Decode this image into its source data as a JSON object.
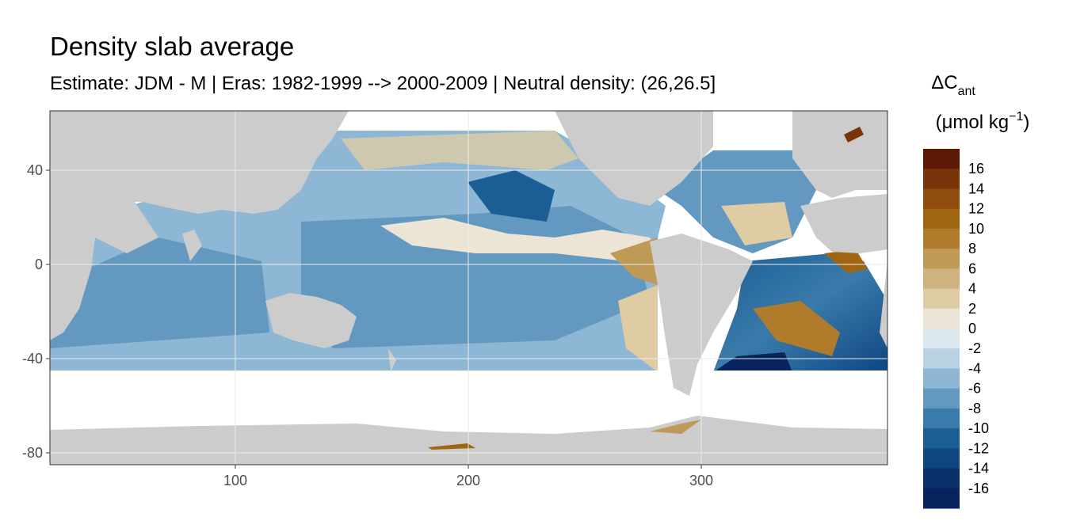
{
  "title": "Density slab average",
  "subtitle": "Estimate: JDM - M | Eras: 1982-1999 --> 2000-2009 | Neutral density: (26,26.5]",
  "legend": {
    "title_main": "ΔC",
    "title_sub": "ant",
    "unit": "(μmol kg⁻¹)",
    "unit_open": "(μmol kg",
    "unit_sup": "−1",
    "unit_close": ")",
    "colors": [
      "#5c1a04",
      "#7a340a",
      "#8f4c0c",
      "#a0650f",
      "#b07c2b",
      "#bf9a57",
      "#cfb27f",
      "#dfcca4",
      "#ece4d4",
      "#dce7ee",
      "#b8d1e3",
      "#8db7d4",
      "#6399c0",
      "#3a7bab",
      "#1b5e95",
      "#0e4680",
      "#0a2f6b",
      "#08235e"
    ],
    "labels": [
      "16",
      "14",
      "12",
      "10",
      "8",
      "6",
      "4",
      "2",
      "0",
      "-2",
      "-4",
      "-6",
      "-8",
      "-10",
      "-12",
      "-14",
      "-16"
    ]
  },
  "chart_data": {
    "type": "heatmap",
    "title": "Density slab average",
    "subtitle": "Estimate: JDM - M | Eras: 1982-1999 --> 2000-2009 | Neutral density: (26,26.5]",
    "xlabel": "",
    "ylabel": "",
    "xlim": [
      20,
      380
    ],
    "ylim": [
      -85,
      65
    ],
    "x_ticks": [
      100,
      200,
      300
    ],
    "y_ticks": [
      40,
      0,
      -40,
      -80
    ],
    "grid": true,
    "legend_position": "right",
    "legend_title": "ΔCant (μmol kg−1)",
    "color_scale_breaks": [
      16,
      14,
      12,
      10,
      8,
      6,
      4,
      2,
      0,
      -2,
      -4,
      -6,
      -8,
      -10,
      -12,
      -14,
      -16
    ],
    "land_color": "#cccccc",
    "no_data_color": "#ffffff"
  }
}
